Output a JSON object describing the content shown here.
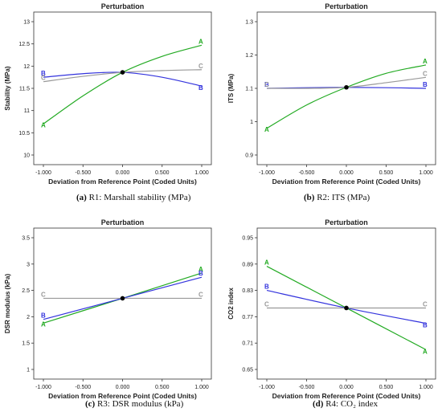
{
  "chart_data": [
    {
      "type": "line",
      "title": "Perturbation",
      "xlabel": "Deviation from Reference Point (Coded Units)",
      "ylabel": "Stability (MPa)",
      "caption_letter": "(a)",
      "caption_text": " R1: Marshall stability (MPa)",
      "xticks": [
        "-1.000",
        "-0.500",
        "0.000",
        "0.500",
        "1.000"
      ],
      "yticks": [
        "10",
        "10.5",
        "11",
        "11.5",
        "12",
        "12.5",
        "13"
      ],
      "xlim": [
        -1,
        1
      ],
      "ylim": [
        10,
        13
      ],
      "reference_point": {
        "x": 0,
        "y": 11.86
      },
      "series": [
        {
          "name": "A",
          "color": "#22aa22",
          "x": [
            -1,
            -0.5,
            0,
            0.5,
            1
          ],
          "y": [
            10.7,
            11.33,
            11.86,
            12.22,
            12.47
          ]
        },
        {
          "name": "B",
          "color": "#3333dd",
          "x": [
            -1,
            -0.5,
            0,
            0.5,
            1
          ],
          "y": [
            11.75,
            11.83,
            11.86,
            11.75,
            11.55
          ]
        },
        {
          "name": "C",
          "color": "#999999",
          "x": [
            -1,
            -0.5,
            0,
            0.5,
            1
          ],
          "y": [
            11.65,
            11.77,
            11.86,
            11.9,
            11.92
          ]
        }
      ]
    },
    {
      "type": "line",
      "title": "Perturbation",
      "xlabel": "Deviation from Reference Point (Coded Units)",
      "ylabel": "ITS (MPa)",
      "caption_letter": "(b)",
      "caption_text": " R2: ITS (MPa)",
      "xticks": [
        "-1.000",
        "-0.500",
        "0.000",
        "0.500",
        "1.000"
      ],
      "yticks": [
        "0.9",
        "1",
        "1.1",
        "1.2",
        "1.3"
      ],
      "xlim": [
        -1,
        1
      ],
      "ylim": [
        0.9,
        1.3
      ],
      "reference_point": {
        "x": 0,
        "y": 1.103
      },
      "series": [
        {
          "name": "A",
          "color": "#22aa22",
          "x": [
            -1,
            -0.5,
            0,
            0.5,
            1
          ],
          "y": [
            0.98,
            1.05,
            1.103,
            1.145,
            1.17
          ]
        },
        {
          "name": "B",
          "color": "#3333dd",
          "x": [
            -1,
            -0.5,
            0,
            0.5,
            1
          ],
          "y": [
            1.1,
            1.102,
            1.103,
            1.102,
            1.1
          ]
        },
        {
          "name": "C",
          "color": "#999999",
          "x": [
            -1,
            -0.5,
            0,
            0.5,
            1
          ],
          "y": [
            1.1,
            1.1,
            1.103,
            1.117,
            1.133
          ]
        }
      ]
    },
    {
      "type": "line",
      "title": "Perturbation",
      "xlabel": "Deviation from Reference Point (Coded Units)",
      "ylabel": "DSR modulus (kPa)",
      "caption_letter": "(c)",
      "caption_text": " R3: DSR modulus (kPa)",
      "xticks": [
        "-1.000",
        "-0.500",
        "0.000",
        "0.500",
        "1.000"
      ],
      "yticks": [
        "1",
        "1.5",
        "2",
        "2.5",
        "3",
        "3.5"
      ],
      "xlim": [
        -1,
        1
      ],
      "ylim": [
        1,
        3.5
      ],
      "reference_point": {
        "x": 0,
        "y": 2.35
      },
      "series": [
        {
          "name": "A",
          "color": "#22aa22",
          "x": [
            -1,
            0,
            1
          ],
          "y": [
            1.88,
            2.35,
            2.83
          ]
        },
        {
          "name": "B",
          "color": "#3333dd",
          "x": [
            -1,
            0,
            1
          ],
          "y": [
            1.95,
            2.35,
            2.75
          ]
        },
        {
          "name": "C",
          "color": "#999999",
          "x": [
            -1,
            0,
            1
          ],
          "y": [
            2.35,
            2.35,
            2.35
          ]
        }
      ]
    },
    {
      "type": "line",
      "title": "Perturbation",
      "xlabel": "Deviation from Reference Point (Coded Units)",
      "ylabel": "CO2 index",
      "caption_letter": "(d)",
      "caption_text": " R4: CO₂ index",
      "xticks": [
        "-1.000",
        "-0.500",
        "0.000",
        "0.500",
        "1.000"
      ],
      "yticks": [
        "0.65",
        "0.71",
        "0.77",
        "0.83",
        "0.89",
        "0.95"
      ],
      "xlim": [
        -1,
        1
      ],
      "ylim": [
        0.65,
        0.95
      ],
      "reference_point": {
        "x": 0,
        "y": 0.79
      },
      "series": [
        {
          "name": "A",
          "color": "#22aa22",
          "x": [
            -1,
            0,
            1
          ],
          "y": [
            0.885,
            0.79,
            0.695
          ]
        },
        {
          "name": "B",
          "color": "#3333dd",
          "x": [
            -1,
            0,
            1
          ],
          "y": [
            0.83,
            0.79,
            0.755
          ]
        },
        {
          "name": "C",
          "color": "#999999",
          "x": [
            -1,
            0,
            1
          ],
          "y": [
            0.79,
            0.79,
            0.79
          ]
        }
      ]
    }
  ]
}
